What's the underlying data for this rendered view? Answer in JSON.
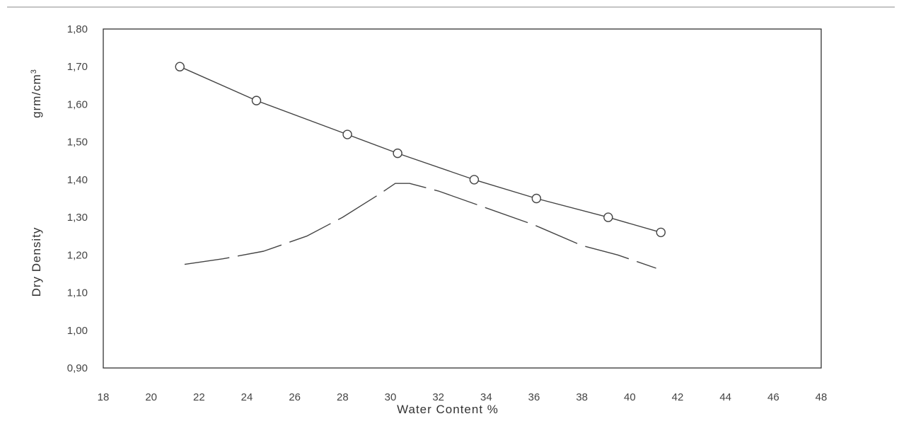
{
  "chart_data": {
    "type": "line",
    "title": "",
    "xlabel": "Water Content %",
    "ylabel": "Dry Density",
    "yunit_base": "grm/cm",
    "yunit_sup": "3",
    "xlim": [
      18,
      48
    ],
    "ylim": [
      0.9,
      1.8
    ],
    "xticks": [
      "18",
      "20",
      "22",
      "24",
      "26",
      "28",
      "30",
      "32",
      "34",
      "36",
      "38",
      "40",
      "42",
      "44",
      "46",
      "48"
    ],
    "yticks": [
      "0,90",
      "1,00",
      "1,10",
      "1,20",
      "1,30",
      "1,40",
      "1,50",
      "1,60",
      "1,70",
      "1,80"
    ],
    "grid": false,
    "legend": "none",
    "series": [
      {
        "style": "solid-with-circle-markers",
        "color": "#444444",
        "x": [
          21.2,
          24.4,
          28.2,
          30.3,
          33.5,
          36.1,
          39.1,
          41.3
        ],
        "y": [
          1.7,
          1.61,
          1.52,
          1.47,
          1.4,
          1.35,
          1.3,
          1.26
        ]
      },
      {
        "style": "dashed",
        "color": "#444444",
        "x": [
          21.4,
          23.0,
          24.7,
          26.5,
          28.0,
          29.5,
          30.2,
          30.8,
          32.0,
          34.0,
          36.0,
          38.0,
          39.5,
          41.1
        ],
        "y": [
          1.175,
          1.19,
          1.21,
          1.25,
          1.3,
          1.36,
          1.39,
          1.39,
          1.37,
          1.325,
          1.28,
          1.225,
          1.2,
          1.165
        ]
      }
    ]
  }
}
